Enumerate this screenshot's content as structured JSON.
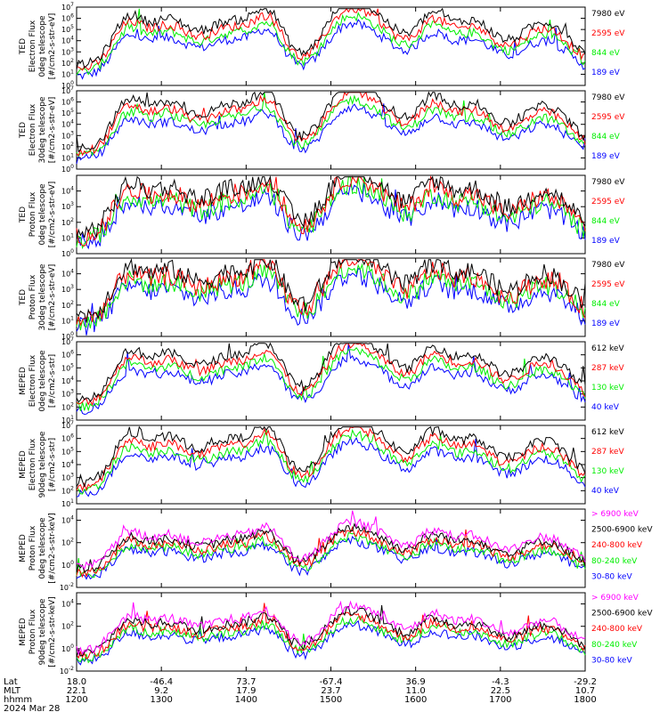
{
  "colors": {
    "blue": "#0000ff",
    "red": "#ff0000",
    "green": "#00ee00",
    "black": "#000000",
    "magenta": "#ff00ff"
  },
  "chart_data": [
    {
      "type": "line",
      "yscale": "log",
      "ylim": [
        1,
        10000000
      ],
      "ylabel": [
        "TED",
        "Electron Flux",
        "0deg telescope",
        "[#/cm2-s-str-eV]"
      ],
      "yticks": [
        "10^0",
        "10^1",
        "10^2",
        "10^3",
        "10^4",
        "10^5",
        "10^6",
        "10^7"
      ],
      "series": [
        {
          "name": "7980 eV",
          "color": "black"
        },
        {
          "name": "2595 eV",
          "color": "red"
        },
        {
          "name": "844 eV",
          "color": "green"
        },
        {
          "name": "189 eV",
          "color": "blue"
        }
      ]
    },
    {
      "type": "line",
      "yscale": "log",
      "ylim": [
        1,
        10000000
      ],
      "ylabel": [
        "TED",
        "Electron Flux",
        "30deg telescope",
        "[#/cm2-s-str-eV]"
      ],
      "yticks": [
        "10^0",
        "10^1",
        "10^2",
        "10^3",
        "10^4",
        "10^5",
        "10^6",
        "10^7"
      ],
      "series": [
        {
          "name": "7980 eV",
          "color": "black"
        },
        {
          "name": "2595 eV",
          "color": "red"
        },
        {
          "name": "844 eV",
          "color": "green"
        },
        {
          "name": "189 eV",
          "color": "blue"
        }
      ]
    },
    {
      "type": "line",
      "yscale": "log",
      "ylim": [
        1,
        100000
      ],
      "ylabel": [
        "TED",
        "Proton Flux",
        "0deg telescope",
        "[#/cm2-s-str-eV]"
      ],
      "yticks": [
        "10^0",
        "10^1",
        "10^2",
        "10^3",
        "10^4"
      ],
      "series": [
        {
          "name": "7980 eV",
          "color": "black"
        },
        {
          "name": "2595 eV",
          "color": "red"
        },
        {
          "name": "844 eV",
          "color": "green"
        },
        {
          "name": "189 eV",
          "color": "blue"
        }
      ]
    },
    {
      "type": "line",
      "yscale": "log",
      "ylim": [
        1,
        100000
      ],
      "ylabel": [
        "TED",
        "Proton Flux",
        "30deg telescope",
        "[#/cm2-s-str-eV]"
      ],
      "yticks": [
        "10^0",
        "10^1",
        "10^2",
        "10^3",
        "10^4"
      ],
      "series": [
        {
          "name": "7980 eV",
          "color": "black"
        },
        {
          "name": "2595 eV",
          "color": "red"
        },
        {
          "name": "844 eV",
          "color": "green"
        },
        {
          "name": "189 eV",
          "color": "blue"
        }
      ]
    },
    {
      "type": "line",
      "yscale": "log",
      "ylim": [
        10,
        10000000
      ],
      "ylabel": [
        "MEPED",
        "Electron Flux",
        "0deg telescope",
        "[#/cm2-s-str]"
      ],
      "yticks": [
        "10^1",
        "10^2",
        "10^3",
        "10^4",
        "10^5",
        "10^6",
        "10^7"
      ],
      "series": [
        {
          "name": "612 keV",
          "color": "black"
        },
        {
          "name": "287 keV",
          "color": "red"
        },
        {
          "name": "130 keV",
          "color": "green"
        },
        {
          "name": "40 keV",
          "color": "blue"
        }
      ]
    },
    {
      "type": "line",
      "yscale": "log",
      "ylim": [
        10,
        10000000
      ],
      "ylabel": [
        "MEPED",
        "Electron Flux",
        "90deg telescope",
        "[#/cm2-s-str]"
      ],
      "yticks": [
        "10^1",
        "10^2",
        "10^3",
        "10^4",
        "10^5",
        "10^6",
        "10^7"
      ],
      "series": [
        {
          "name": "612 keV",
          "color": "black"
        },
        {
          "name": "287 keV",
          "color": "red"
        },
        {
          "name": "130 keV",
          "color": "green"
        },
        {
          "name": "40 keV",
          "color": "blue"
        }
      ]
    },
    {
      "type": "line",
      "yscale": "log",
      "ylim": [
        0.01,
        100000
      ],
      "ylabel": [
        "MEPED",
        "Proton Flux",
        "0deg telescope",
        "[#/cm2-s-str-keV]"
      ],
      "yticks": [
        "10^-2",
        "10^0",
        "10^2",
        "10^4"
      ],
      "series": [
        {
          "name": "> 6900 keV",
          "color": "magenta"
        },
        {
          "name": "2500-6900 keV",
          "color": "black"
        },
        {
          "name": "240-800 keV",
          "color": "red"
        },
        {
          "name": "80-240 keV",
          "color": "green"
        },
        {
          "name": "30-80 keV",
          "color": "blue"
        }
      ]
    },
    {
      "type": "line",
      "yscale": "log",
      "ylim": [
        0.01,
        100000
      ],
      "ylabel": [
        "MEPED",
        "Proton Flux",
        "90deg telescope",
        "[#/cm2-s-str-keV]"
      ],
      "yticks": [
        "10^-2",
        "10^0",
        "10^2",
        "10^4"
      ],
      "series": [
        {
          "name": "> 6900 keV",
          "color": "magenta"
        },
        {
          "name": "2500-6900 keV",
          "color": "black"
        },
        {
          "name": "240-800 keV",
          "color": "red"
        },
        {
          "name": "80-240 keV",
          "color": "green"
        },
        {
          "name": "30-80 keV",
          "color": "blue"
        }
      ]
    }
  ],
  "x_axis": {
    "row_labels": [
      "Lat",
      "MLT",
      "hhmm"
    ],
    "ticks": [
      {
        "lat": "18.0",
        "mlt": "22.1",
        "hhmm": "1200"
      },
      {
        "lat": "-46.4",
        "mlt": "9.2",
        "hhmm": "1300"
      },
      {
        "lat": "73.7",
        "mlt": "17.9",
        "hhmm": "1400"
      },
      {
        "lat": "-67.4",
        "mlt": "23.7",
        "hhmm": "1500"
      },
      {
        "lat": "36.9",
        "mlt": "11.0",
        "hhmm": "1600"
      },
      {
        "lat": "-4.3",
        "mlt": "22.5",
        "hhmm": "1700"
      },
      {
        "lat": "-29.2",
        "mlt": "10.7",
        "hhmm": "1800"
      }
    ],
    "date": "2024 Mar 28"
  }
}
